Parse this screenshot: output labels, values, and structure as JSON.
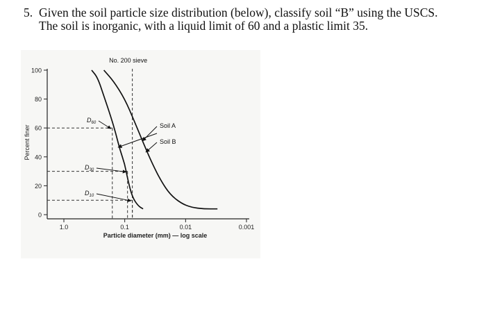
{
  "question": {
    "number": "5.",
    "line1": "Given the soil particle size distribution (below), classify soil “B” using the USCS.",
    "line2": "The soil is inorganic, with a liquid limit of 60 and a plastic limit 35."
  },
  "chart_data": {
    "type": "line",
    "title": "",
    "xlabel": "Particle diameter (mm) — log scale",
    "ylabel": "Percent finer",
    "x_scale": "log",
    "x_reversed": true,
    "xlim": [
      1.0,
      0.001
    ],
    "ylim": [
      0,
      100
    ],
    "x_ticks": [
      {
        "value": 1.0,
        "label": "1.0"
      },
      {
        "value": 0.1,
        "label": "0.1"
      },
      {
        "value": 0.01,
        "label": "0.01"
      },
      {
        "value": 0.001,
        "label": "0.001"
      }
    ],
    "y_ticks": [
      {
        "value": 0,
        "label": "0"
      },
      {
        "value": 20,
        "label": "20"
      },
      {
        "value": 40,
        "label": "40"
      },
      {
        "value": 60,
        "label": "60"
      },
      {
        "value": 80,
        "label": "80"
      },
      {
        "value": 100,
        "label": "100"
      }
    ],
    "sieve_line": {
      "x": 0.075,
      "label": "No. 200 sieve"
    },
    "series": [
      {
        "name": "Soil A",
        "x": [
          0.22,
          0.15,
          0.1,
          0.07,
          0.05,
          0.035,
          0.025,
          0.018,
          0.012,
          0.008,
          0.005,
          0.003
        ],
        "y": [
          100,
          92,
          80,
          65,
          50,
          35,
          23,
          14,
          8,
          5,
          4,
          4
        ]
      },
      {
        "name": "Soil B",
        "x": [
          0.35,
          0.28,
          0.22,
          0.17,
          0.14,
          0.12,
          0.1,
          0.09,
          0.075,
          0.06,
          0.05
        ],
        "y": [
          100,
          95,
          82,
          68,
          56,
          45,
          35,
          25,
          12,
          6,
          4
        ]
      }
    ],
    "annotations": [
      {
        "label": "D60",
        "x": 0.16,
        "y": 60
      },
      {
        "label": "D30",
        "x": 0.09,
        "y": 30
      },
      {
        "label": "D10",
        "x": 0.075,
        "y": 10
      }
    ],
    "grid": false,
    "legend": "inline labels"
  }
}
